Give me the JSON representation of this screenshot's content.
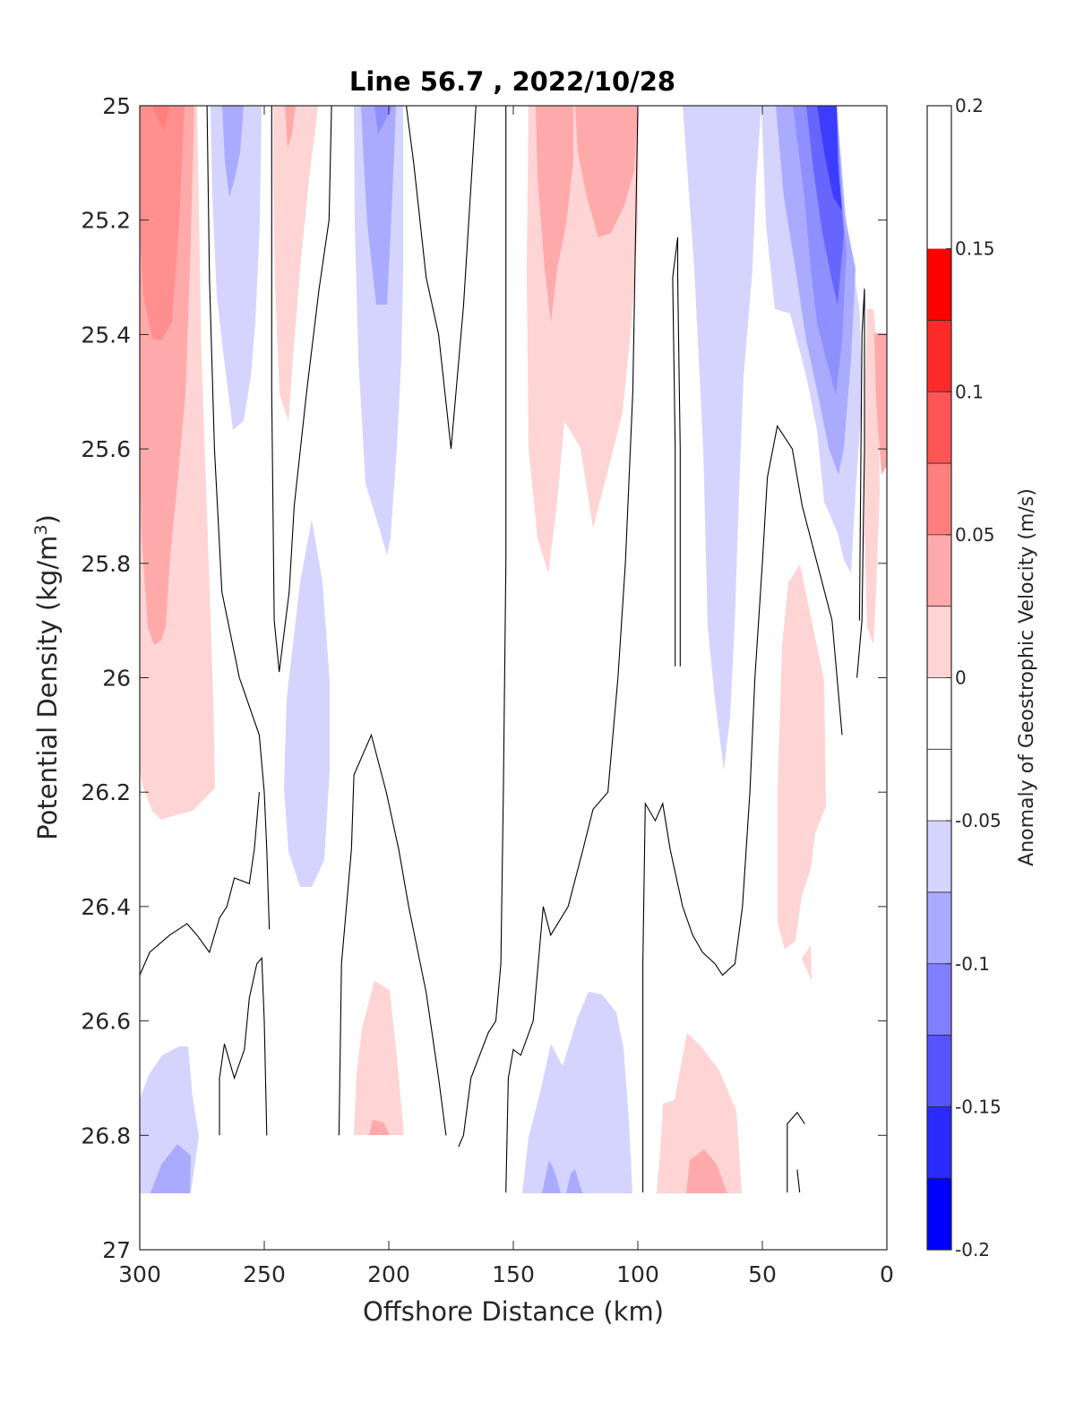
{
  "chart_data": {
    "type": "contour",
    "title": "Line 56.7 , 2022/10/28",
    "xlabel": "Offshore Distance (km)",
    "ylabel": "Potential Density (kg/m",
    "ylabel_superscript": "3",
    "ylabel_close": ")",
    "xlim": [
      300,
      0
    ],
    "ylim": [
      25,
      27
    ],
    "x_reversed": true,
    "y_reversed": true,
    "x_ticks": [
      300,
      250,
      200,
      150,
      100,
      50,
      0
    ],
    "y_ticks": [
      25,
      25.2,
      25.4,
      25.6,
      25.8,
      26,
      26.2,
      26.4,
      26.6,
      26.8,
      27
    ],
    "x_tick_labels": [
      "300",
      "250",
      "200",
      "150",
      "100",
      "50",
      "0"
    ],
    "y_tick_labels": [
      "25",
      "25.2",
      "25.4",
      "25.6",
      "25.8",
      "26",
      "26.2",
      "26.4",
      "26.6",
      "26.8",
      "27"
    ],
    "grid": false,
    "colorbar": {
      "label": "Anomaly of Geostrophic Velocity (m/s)",
      "range": [
        -0.2,
        0.2
      ],
      "step": 0.025,
      "ticks": [
        0.2,
        0.15,
        0.1,
        0.05,
        0,
        -0.05,
        -0.1,
        -0.15,
        -0.2
      ],
      "tick_labels": [
        "0.2",
        "0.15",
        "0.1",
        "0.05",
        "0",
        "-0.05",
        "-0.1",
        "-0.15",
        "-0.2"
      ],
      "level_colors": [
        "#0000ff",
        "#2b2bff",
        "#5555ff",
        "#7f7fff",
        "#aaaaff",
        "#d4d4ff",
        "#ffffff",
        "#ffffff",
        "#ffd4d4",
        "#ffaaaa",
        "#ff7f7f",
        "#ff5555",
        "#ff2b2b",
        "#ff0000"
      ]
    },
    "zero_contour_lines": [
      {
        "points": [
          [
            273,
            25
          ],
          [
            272,
            25.3
          ],
          [
            270,
            25.6
          ],
          [
            267,
            25.85
          ],
          [
            260,
            26.0
          ],
          [
            252,
            26.1
          ],
          [
            250,
            26.2
          ],
          [
            249,
            26.3
          ],
          [
            248,
            26.44
          ]
        ]
      },
      {
        "points": [
          [
            247,
            25
          ],
          [
            247,
            25.5
          ],
          [
            246,
            25.9
          ],
          [
            244,
            25.99
          ],
          [
            240,
            25.85
          ],
          [
            238,
            25.7
          ],
          [
            233,
            25.5
          ],
          [
            228,
            25.32
          ],
          [
            224,
            25.2
          ],
          [
            223,
            25
          ]
        ]
      },
      {
        "points": [
          [
            300,
            26.52
          ],
          [
            296,
            26.48
          ],
          [
            288,
            26.45
          ],
          [
            281,
            26.43
          ],
          [
            277,
            26.45
          ],
          [
            272,
            26.48
          ],
          [
            268,
            26.42
          ],
          [
            265,
            26.4
          ],
          [
            262,
            26.35
          ],
          [
            256,
            26.36
          ],
          [
            254,
            26.3
          ],
          [
            252,
            26.2
          ]
        ]
      },
      {
        "points": [
          [
            268,
            26.8
          ],
          [
            268,
            26.7
          ],
          [
            266,
            26.64
          ],
          [
            262,
            26.7
          ],
          [
            258,
            26.65
          ],
          [
            256,
            26.56
          ],
          [
            253,
            26.5
          ],
          [
            251,
            26.49
          ],
          [
            250,
            26.6
          ],
          [
            249,
            26.8
          ]
        ]
      },
      {
        "points": [
          [
            220,
            26.8
          ],
          [
            219,
            26.5
          ],
          [
            215,
            26.3
          ],
          [
            214,
            26.17
          ],
          [
            207,
            26.1
          ],
          [
            201,
            26.2
          ],
          [
            196,
            26.3
          ],
          [
            192,
            26.4
          ],
          [
            185,
            26.55
          ],
          [
            180,
            26.7
          ],
          [
            177,
            26.8
          ]
        ]
      },
      {
        "points": [
          [
            193,
            25
          ],
          [
            190,
            25.1
          ],
          [
            185,
            25.3
          ],
          [
            180,
            25.4
          ],
          [
            175,
            25.6
          ],
          [
            170,
            25.35
          ],
          [
            165,
            25
          ]
        ]
      },
      {
        "points": [
          [
            172,
            26.82
          ],
          [
            170,
            26.8
          ],
          [
            167,
            26.7
          ],
          [
            160,
            26.62
          ],
          [
            157,
            26.6
          ],
          [
            155,
            26.5
          ],
          [
            154,
            26.2
          ],
          [
            153,
            25.8
          ],
          [
            153,
            25
          ],
          [
            150,
            25
          ]
        ]
      },
      {
        "points": [
          [
            153,
            26.9
          ],
          [
            152,
            26.7
          ],
          [
            150,
            26.65
          ],
          [
            147,
            26.66
          ],
          [
            142,
            26.6
          ],
          [
            138,
            26.4
          ],
          [
            135,
            26.45
          ],
          [
            128,
            26.4
          ],
          [
            122,
            26.3
          ],
          [
            118,
            26.23
          ],
          [
            112,
            26.2
          ],
          [
            108,
            26.0
          ],
          [
            105,
            25.8
          ],
          [
            102,
            25.5
          ],
          [
            100,
            25
          ]
        ]
      },
      {
        "points": [
          [
            98,
            26.9
          ],
          [
            98,
            26.5
          ],
          [
            97,
            26.22
          ],
          [
            93,
            26.25
          ],
          [
            90,
            26.22
          ],
          [
            87,
            26.3
          ],
          [
            82,
            26.4
          ],
          [
            78,
            26.45
          ],
          [
            74,
            26.48
          ],
          [
            69,
            26.5
          ],
          [
            66,
            26.52
          ],
          [
            61,
            26.5
          ],
          [
            58,
            26.4
          ],
          [
            55,
            26.2
          ],
          [
            53,
            26.0
          ],
          [
            50,
            25.8
          ],
          [
            48,
            25.65
          ],
          [
            44,
            25.56
          ],
          [
            38,
            25.6
          ],
          [
            34,
            25.7
          ],
          [
            28,
            25.8
          ],
          [
            22,
            25.9
          ],
          [
            20,
            26.0
          ],
          [
            18,
            26.1
          ]
        ]
      },
      {
        "points": [
          [
            85,
            25.98
          ],
          [
            85,
            25.6
          ],
          [
            86,
            25.3
          ],
          [
            84,
            25.23
          ],
          [
            84,
            25.3
          ],
          [
            83,
            25.6
          ],
          [
            83,
            25.98
          ]
        ]
      },
      {
        "points": [
          [
            12,
            26.0
          ],
          [
            10,
            25.9
          ],
          [
            9,
            25.6
          ],
          [
            9,
            25.32
          ],
          [
            10,
            25.4
          ],
          [
            11,
            25.9
          ]
        ]
      },
      {
        "points": [
          [
            40,
            26.9
          ],
          [
            40,
            26.78
          ],
          [
            36,
            26.76
          ],
          [
            33,
            26.78
          ]
        ]
      },
      {
        "points": [
          [
            36,
            26.86
          ],
          [
            35,
            26.9
          ]
        ]
      }
    ]
  }
}
